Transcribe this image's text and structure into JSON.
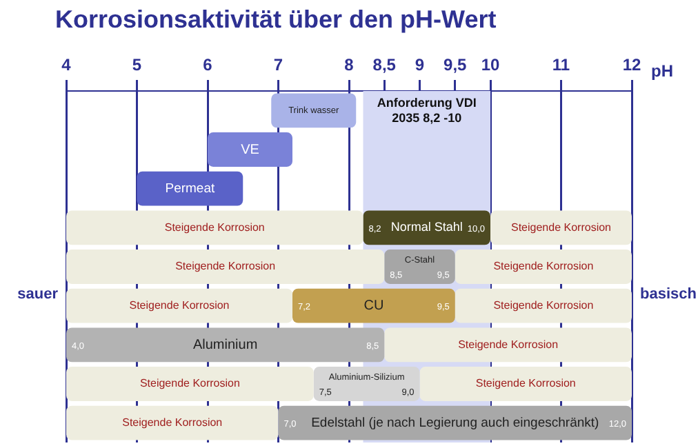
{
  "chart_data": {
    "type": "bar",
    "orientation": "horizontal",
    "title": "Korrosionsaktivität über den pH-Wert",
    "xlabel": "pH",
    "categories": [
      "Trink wasser",
      "VE",
      "Permeat",
      "Normal Stahl",
      "C-Stahl",
      "CU",
      "Aluminium",
      "Aluminium-Silizium",
      "Edelstahl (je nach Legierung auch eingeschränkt)"
    ],
    "series": [
      {
        "name": "Steigende Korrosion",
        "color": "#eeeddf",
        "base": [
          null,
          null,
          null,
          4,
          4,
          4,
          null,
          4,
          4
        ],
        "values": [
          null,
          null,
          null,
          4.2,
          4.5,
          3.2,
          null,
          3.5,
          3.0
        ]
      },
      {
        "colors": [
          "#a9b3e8",
          "#7a82d8",
          "#5a62c8",
          "#4d4a22",
          "#a6a6a6",
          "#c2a050",
          "#b3b3b3",
          "#d6d6d6",
          "#a8a8a8"
        ],
        "base": [
          6.9,
          6,
          5,
          8.2,
          8.5,
          7.2,
          4,
          7.5,
          7
        ],
        "values": [
          1.2,
          1.2,
          1.5,
          1.8,
          1.0,
          2.3,
          4.5,
          1.5,
          5.0
        ]
      },
      {
        "name": "Steigende Korrosion",
        "color": "#eeeddf",
        "base": [
          null,
          null,
          null,
          10,
          9.5,
          9.5,
          8.5,
          9,
          null
        ],
        "values": [
          null,
          null,
          null,
          2,
          2.5,
          2.5,
          3.5,
          3,
          null
        ]
      }
    ],
    "xlim": [
      4,
      12
    ],
    "xticks": [
      4,
      5,
      6,
      7,
      8,
      {
        "value": 8.5,
        "label": "8,5"
      },
      9,
      {
        "value": 9.5,
        "label": "9,5"
      },
      10,
      11,
      12
    ],
    "grid": "x",
    "tick_labels": "x",
    "legend": false,
    "bands": [
      {
        "axis": "x",
        "from": 8.2,
        "to": 10,
        "label": "Anforderung VDI 2035 8,2 -10",
        "color": "#d6daf5"
      }
    ],
    "annotations": [
      "sauer",
      "basisch",
      {
        "text": "8,2",
        "x": 8.2,
        "y": "Normal Stahl"
      },
      {
        "text": "10,0",
        "x": 10,
        "y": "Normal Stahl"
      },
      {
        "text": "8,5",
        "x": 8.5,
        "y": "C-Stahl"
      },
      {
        "text": "9,5",
        "x": 9.5,
        "y": "C-Stahl"
      },
      {
        "text": "7,2",
        "x": 7.2,
        "y": "CU"
      },
      {
        "text": "9,5",
        "x": 9.5,
        "y": "CU"
      },
      {
        "text": "4,0",
        "x": 4,
        "y": "Aluminium"
      },
      {
        "text": "8,5",
        "x": 8.5,
        "y": "Aluminium"
      },
      {
        "text": "7,5",
        "x": 7.5,
        "y": "Aluminium-Silizium"
      },
      {
        "text": "9,0",
        "x": 9,
        "y": "Aluminium-Silizium"
      },
      {
        "text": "7,0",
        "x": 7,
        "y": "Edelstahl (je nach Legierung auch eingeschränkt)"
      },
      {
        "text": "12,0",
        "x": 12,
        "y": "Edelstahl (je nach Legierung auch eingeschränkt)"
      }
    ]
  }
}
